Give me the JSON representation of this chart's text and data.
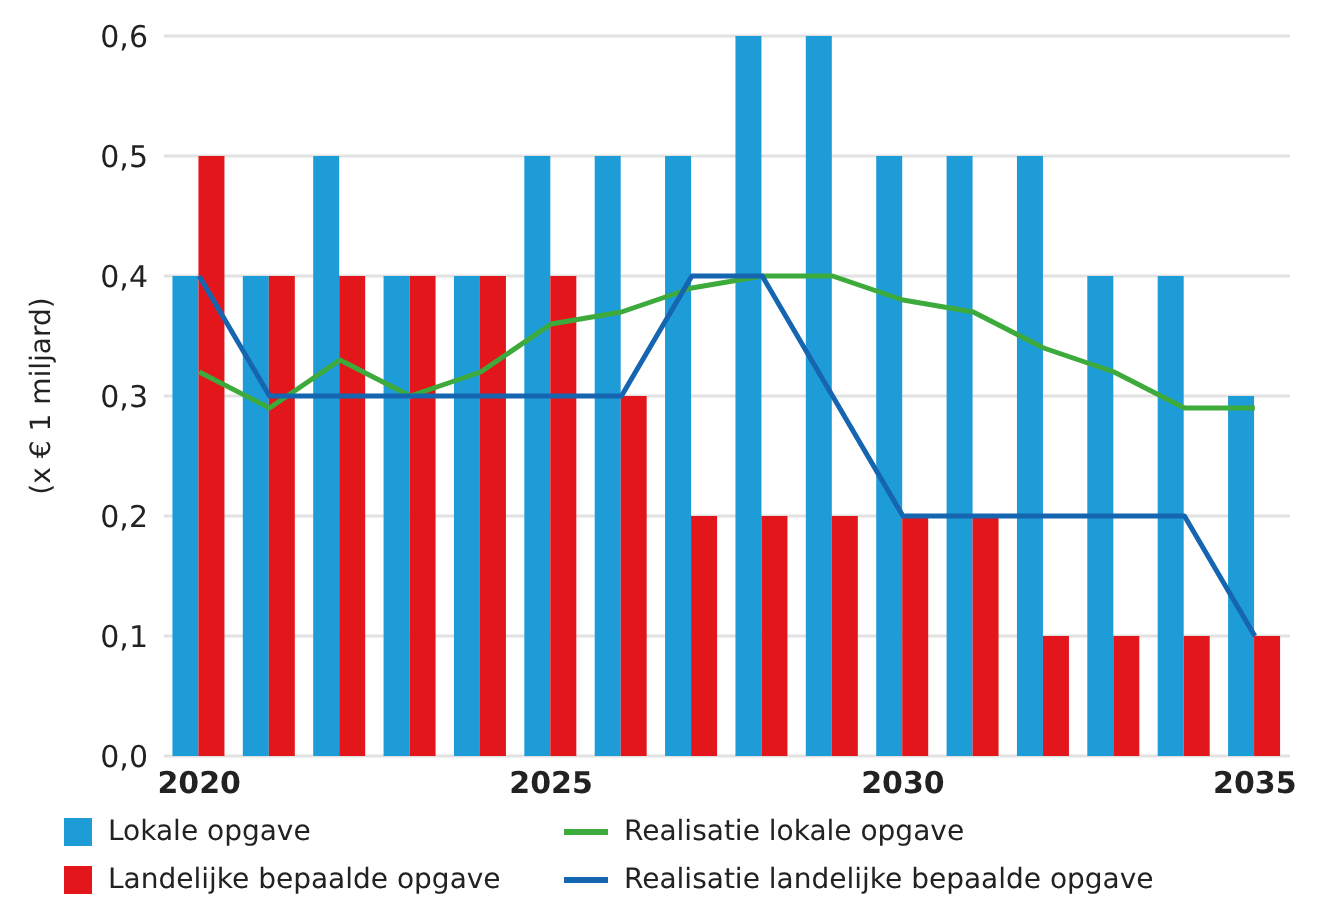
{
  "chart_data": {
    "type": "bar",
    "ylabel": "(x € 1 miljard)",
    "categories": [
      "2020",
      null,
      null,
      null,
      null,
      "2025",
      null,
      null,
      null,
      null,
      "2030",
      null,
      null,
      null,
      null,
      "2035"
    ],
    "series": [
      {
        "name": "Lokale opgave",
        "color": "#1e9cd7",
        "values": [
          0.4,
          0.4,
          0.5,
          0.4,
          0.4,
          0.5,
          0.5,
          0.5,
          0.6,
          0.6,
          0.5,
          0.5,
          0.5,
          0.4,
          0.4,
          0.3
        ]
      },
      {
        "name": "Landelijke bepaalde opgave",
        "color": "#e3161b",
        "values": [
          0.5,
          0.4,
          0.4,
          0.4,
          0.4,
          0.4,
          0.3,
          0.2,
          0.2,
          0.2,
          0.2,
          0.2,
          0.1,
          0.1,
          0.1,
          0.1
        ]
      },
      {
        "name": "Realisatie lokale opgave",
        "type": "line",
        "color": "#3daa3c",
        "values": [
          0.32,
          0.29,
          0.33,
          0.3,
          0.32,
          0.36,
          0.37,
          0.39,
          0.4,
          0.4,
          0.38,
          0.37,
          0.34,
          0.32,
          0.29,
          0.29
        ]
      },
      {
        "name": "Realisatie landelijke bepaalde opgave",
        "type": "line",
        "color": "#1565b0",
        "values": [
          0.4,
          0.3,
          0.3,
          0.3,
          0.3,
          0.3,
          0.3,
          0.4,
          0.4,
          0.3,
          0.2,
          0.2,
          0.2,
          0.2,
          0.2,
          0.1
        ]
      }
    ],
    "ylim": [
      0,
      0.6
    ],
    "yticks": [
      {
        "value": 0,
        "label": "0,0"
      },
      {
        "value": 0.1,
        "label": "0,1"
      },
      {
        "value": 0.2,
        "label": "0,2"
      },
      {
        "value": 0.3,
        "label": "0,3"
      },
      {
        "value": 0.4,
        "label": "0,4"
      },
      {
        "value": 0.5,
        "label": "0,5"
      },
      {
        "value": 0.6,
        "label": "0,6"
      }
    ],
    "grid": "y",
    "legend": "bottom",
    "marker": "none",
    "line_style": "solid"
  }
}
